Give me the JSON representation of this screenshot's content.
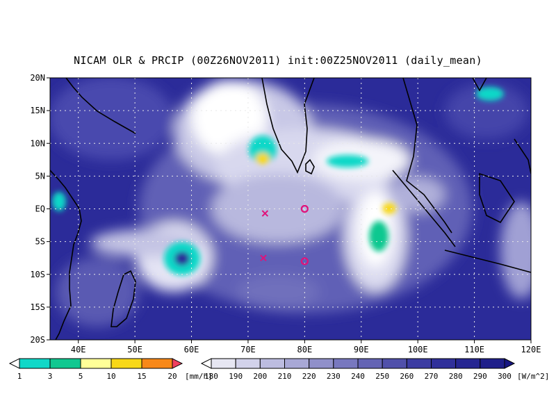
{
  "title": "NICAM OLR & PRCIP (00Z26NOV2011) init:00Z25NOV2011 (daily_mean)",
  "map": {
    "lon_range": [
      35,
      120
    ],
    "lat_range": [
      -20,
      20
    ],
    "lon_ticks": [
      {
        "value": 40,
        "label": "40E"
      },
      {
        "value": 50,
        "label": "50E"
      },
      {
        "value": 60,
        "label": "60E"
      },
      {
        "value": 70,
        "label": "70E"
      },
      {
        "value": 80,
        "label": "80E"
      },
      {
        "value": 90,
        "label": "90E"
      },
      {
        "value": 100,
        "label": "100E"
      },
      {
        "value": 110,
        "label": "110E"
      },
      {
        "value": 120,
        "label": "120E"
      }
    ],
    "lat_ticks": [
      {
        "value": 20,
        "label": "20N"
      },
      {
        "value": 15,
        "label": "15N"
      },
      {
        "value": 10,
        "label": "10N"
      },
      {
        "value": 5,
        "label": "5N"
      },
      {
        "value": 0,
        "label": "EQ"
      },
      {
        "value": -5,
        "label": "5S"
      },
      {
        "value": -10,
        "label": "10S"
      },
      {
        "value": -15,
        "label": "15S"
      },
      {
        "value": -20,
        "label": "20S"
      }
    ],
    "grid": true,
    "ocean_color": "#2b2b99",
    "markers": [
      {
        "type": "x",
        "lon": 73,
        "lat": -0.7
      },
      {
        "type": "x",
        "lon": 72.7,
        "lat": -7.5
      },
      {
        "type": "o",
        "lon": 80,
        "lat": 0
      },
      {
        "type": "o",
        "lon": 80,
        "lat": -8
      }
    ],
    "marker_color": "#e0127a"
  },
  "precip_colorbar": {
    "unit": "[mm/h]",
    "labels": [
      "1",
      "3",
      "5",
      "10",
      "15",
      "20"
    ],
    "colors": [
      "#ffffff",
      "#10d8c8",
      "#10c890",
      "#ffff98",
      "#f8d818",
      "#f88818",
      "#f04060"
    ]
  },
  "olr_colorbar": {
    "unit": "[W/m^2]",
    "labels": [
      "180",
      "190",
      "200",
      "210",
      "220",
      "230",
      "240",
      "250",
      "260",
      "270",
      "280",
      "290",
      "300"
    ],
    "colors": [
      "#ffffff",
      "#e6e6f2",
      "#d2d2ea",
      "#bcbce0",
      "#a8a8d6",
      "#9090ca",
      "#7878bf",
      "#6464b4",
      "#5050aa",
      "#3c3ca2",
      "#30309a",
      "#262692",
      "#1e1e8a",
      "#161682"
    ]
  }
}
